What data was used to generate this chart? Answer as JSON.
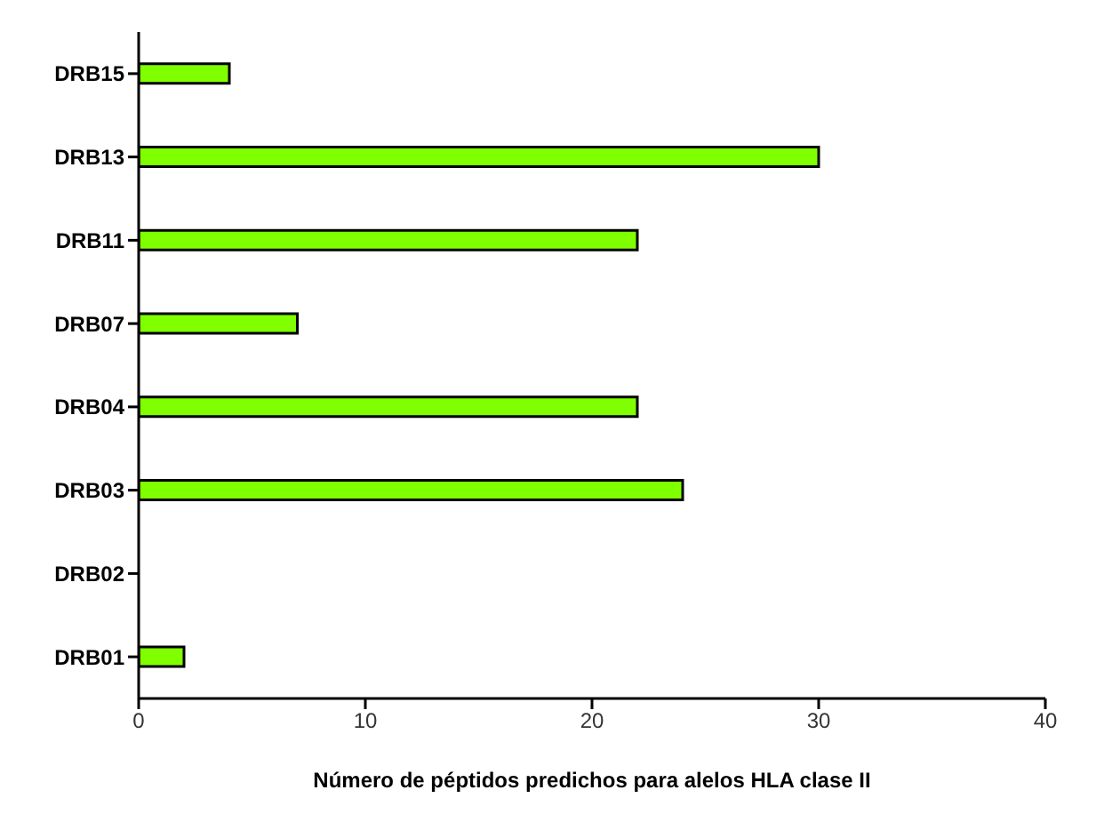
{
  "chart_data": {
    "type": "bar",
    "orientation": "horizontal",
    "xlabel": "Número de péptidos predichos para alelos HLA clase II",
    "categories": [
      "DRB15",
      "DRB13",
      "DRB11",
      "DRB07",
      "DRB04",
      "DRB03",
      "DRB02",
      "DRB01"
    ],
    "values": [
      4,
      30,
      22,
      7,
      22,
      24,
      0,
      2
    ],
    "color": "#80ff00",
    "xlim": [
      0,
      40
    ],
    "xticks": [
      0,
      10,
      20,
      30,
      40
    ],
    "grid": false
  }
}
